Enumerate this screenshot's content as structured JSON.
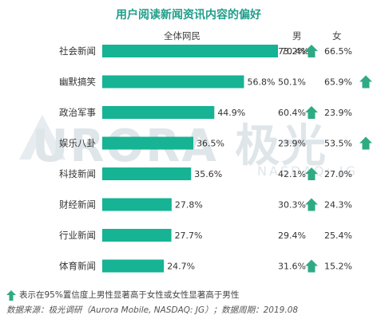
{
  "title": "用户阅读新闻资讯内容的偏好",
  "columns": {
    "all": "全体网民",
    "male": "男",
    "female": "女"
  },
  "watermark": {
    "brand": "URORA 极光",
    "sub": "NASDAQ: JG"
  },
  "footnote": "表示在95%置信度上男性显著高于女性或女性显著高于男性",
  "source": "数据来源：极光调研（Aurora Mobile, NASDAQ: JG）；数据周期：2019.08",
  "colors": {
    "bar": "#16b394",
    "arrow": "#2eab84",
    "title": "#1f9e8a"
  },
  "icons": {
    "up_arrow": "up-arrow-icon"
  },
  "chart_data": {
    "type": "bar",
    "orientation": "horizontal",
    "categories": [
      "社会新闻",
      "幽默搞笑",
      "政治军事",
      "娱乐八卦",
      "科技新闻",
      "财经新闻",
      "行业新闻",
      "体育新闻"
    ],
    "series": [
      {
        "name": "全体网民",
        "values": [
          70.4,
          56.8,
          44.9,
          36.5,
          35.6,
          27.8,
          27.7,
          24.7
        ]
      }
    ],
    "value_labels": [
      "70.4%",
      "56.8%",
      "44.9%",
      "36.5%",
      "35.6%",
      "27.8%",
      "27.7%",
      "24.7%"
    ],
    "male": [
      "73.2%",
      "50.1%",
      "60.4%",
      "23.9%",
      "42.1%",
      "30.3%",
      "29.4%",
      "31.6%"
    ],
    "female": [
      "66.5%",
      "65.9%",
      "23.9%",
      "53.5%",
      "27.0%",
      "24.3%",
      "25.4%",
      "15.2%"
    ],
    "male_significant": [
      true,
      false,
      true,
      false,
      true,
      true,
      false,
      true
    ],
    "female_significant": [
      false,
      true,
      false,
      true,
      false,
      false,
      false,
      false
    ],
    "xlim": [
      0,
      80
    ],
    "grid": false,
    "legend": "none"
  }
}
